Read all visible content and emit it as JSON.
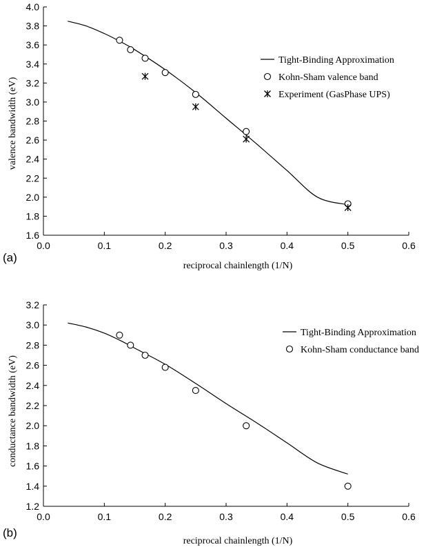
{
  "chart_data": [
    {
      "type": "scatter",
      "panel_label": "(a)",
      "xlabel": "reciprocal chainlength (1/N)",
      "ylabel": "valence bandwidth (eV)",
      "xlim": [
        0.0,
        0.6
      ],
      "ylim": [
        1.6,
        4.0
      ],
      "xticks": [
        "0.0",
        "0.1",
        "0.2",
        "0.3",
        "0.4",
        "0.5",
        "0.6"
      ],
      "yticks": [
        "1.6",
        "1.8",
        "2.0",
        "2.2",
        "2.4",
        "2.6",
        "2.8",
        "3.0",
        "3.2",
        "3.4",
        "3.6",
        "3.8",
        "4.0"
      ],
      "legend_position": "top-right",
      "series": [
        {
          "name": "Tight-Binding Approximation",
          "kind": "line",
          "x": [
            0.04,
            0.07,
            0.1,
            0.125,
            0.15,
            0.2,
            0.25,
            0.3,
            0.35,
            0.4,
            0.45,
            0.5
          ],
          "y": [
            3.85,
            3.8,
            3.72,
            3.64,
            3.55,
            3.34,
            3.1,
            2.83,
            2.56,
            2.28,
            2.0,
            1.92
          ]
        },
        {
          "name": "Kohn-Sham valence band",
          "kind": "circle",
          "x": [
            0.125,
            0.143,
            0.167,
            0.2,
            0.25,
            0.333,
            0.5
          ],
          "y": [
            3.65,
            3.55,
            3.46,
            3.31,
            3.08,
            2.69,
            1.93
          ]
        },
        {
          "name": "Experiment (GasPhase UPS)",
          "kind": "asterisk",
          "x": [
            0.167,
            0.25,
            0.333,
            0.5
          ],
          "y": [
            3.27,
            2.95,
            2.61,
            1.89
          ]
        }
      ]
    },
    {
      "type": "scatter",
      "panel_label": "(b)",
      "xlabel": "reciprocal chainlength (1/N)",
      "ylabel": "conductance bandwidth (eV)",
      "xlim": [
        0.0,
        0.6
      ],
      "ylim": [
        1.2,
        3.2
      ],
      "xticks": [
        "0.0",
        "0.1",
        "0.2",
        "0.3",
        "0.4",
        "0.5",
        "0.6"
      ],
      "yticks": [
        "1.2",
        "1.4",
        "1.6",
        "1.8",
        "2.0",
        "2.2",
        "2.4",
        "2.6",
        "2.8",
        "3.0",
        "3.2"
      ],
      "legend_position": "top-right",
      "series": [
        {
          "name": "Tight-Binding Approximation",
          "kind": "line",
          "x": [
            0.04,
            0.07,
            0.1,
            0.125,
            0.15,
            0.2,
            0.25,
            0.3,
            0.35,
            0.4,
            0.45,
            0.5
          ],
          "y": [
            3.02,
            2.98,
            2.92,
            2.85,
            2.77,
            2.61,
            2.42,
            2.22,
            2.03,
            1.83,
            1.63,
            1.52
          ]
        },
        {
          "name": "Kohn-Sham conductance band",
          "kind": "circle",
          "x": [
            0.125,
            0.143,
            0.167,
            0.2,
            0.25,
            0.333,
            0.5
          ],
          "y": [
            2.9,
            2.8,
            2.7,
            2.58,
            2.35,
            2.0,
            1.4
          ]
        }
      ]
    }
  ]
}
